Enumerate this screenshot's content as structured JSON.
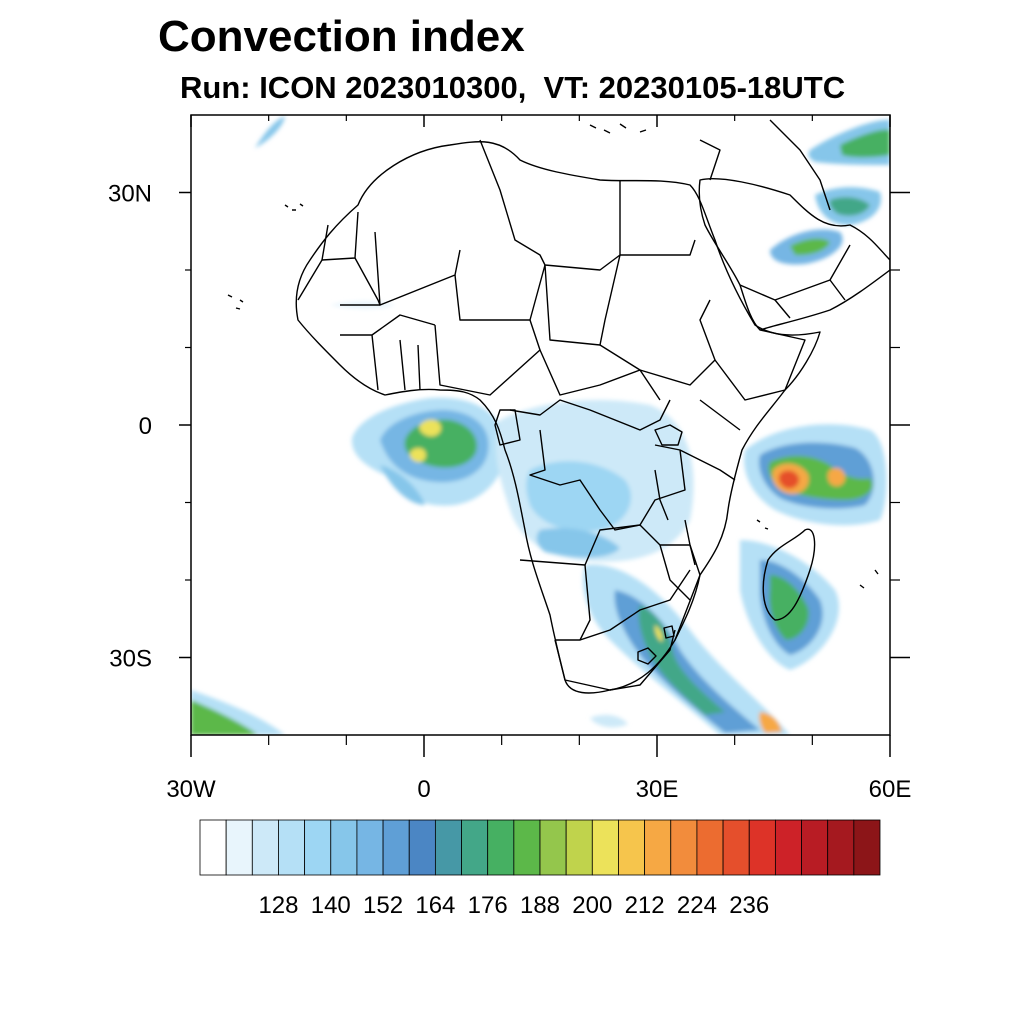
{
  "title": "Convection index",
  "subtitle": "Run: ICON 2023010300,  VT: 20230105-18UTC",
  "map": {
    "region": "Africa",
    "lon_range": [
      -30,
      60
    ],
    "lat_range": [
      -40,
      40
    ],
    "lon_ticks": [
      {
        "lon": -30,
        "label": "30W"
      },
      {
        "lon": 0,
        "label": "0"
      },
      {
        "lon": 30,
        "label": "30E"
      },
      {
        "lon": 60,
        "label": "60E"
      }
    ],
    "lat_ticks": [
      {
        "lat": 30,
        "label": "30N"
      },
      {
        "lat": 0,
        "label": "0"
      },
      {
        "lat": -30,
        "label": "30S"
      }
    ],
    "minor_lon_ticks": [
      -20,
      -10,
      10,
      20,
      40,
      50
    ],
    "minor_lat_ticks": [
      20,
      10,
      -10,
      -20
    ]
  },
  "colorbar": {
    "colors": [
      "#ffffff",
      "#e8f5fc",
      "#cde9f8",
      "#b5e0f6",
      "#9dd6f3",
      "#86c6ea",
      "#76b6e4",
      "#5f9fd6",
      "#4b86c4",
      "#4698a6",
      "#43a788",
      "#46b062",
      "#5cb849",
      "#94c64c",
      "#c0d34c",
      "#ece25a",
      "#f6c54c",
      "#f6a844",
      "#f28c3c",
      "#ec6c30",
      "#e54f2c",
      "#dd3328",
      "#cd2228",
      "#b81c24",
      "#a5191f",
      "#8c1518"
    ],
    "tick_labels": [
      "128",
      "140",
      "152",
      "164",
      "176",
      "188",
      "200",
      "212",
      "224",
      "236"
    ]
  }
}
